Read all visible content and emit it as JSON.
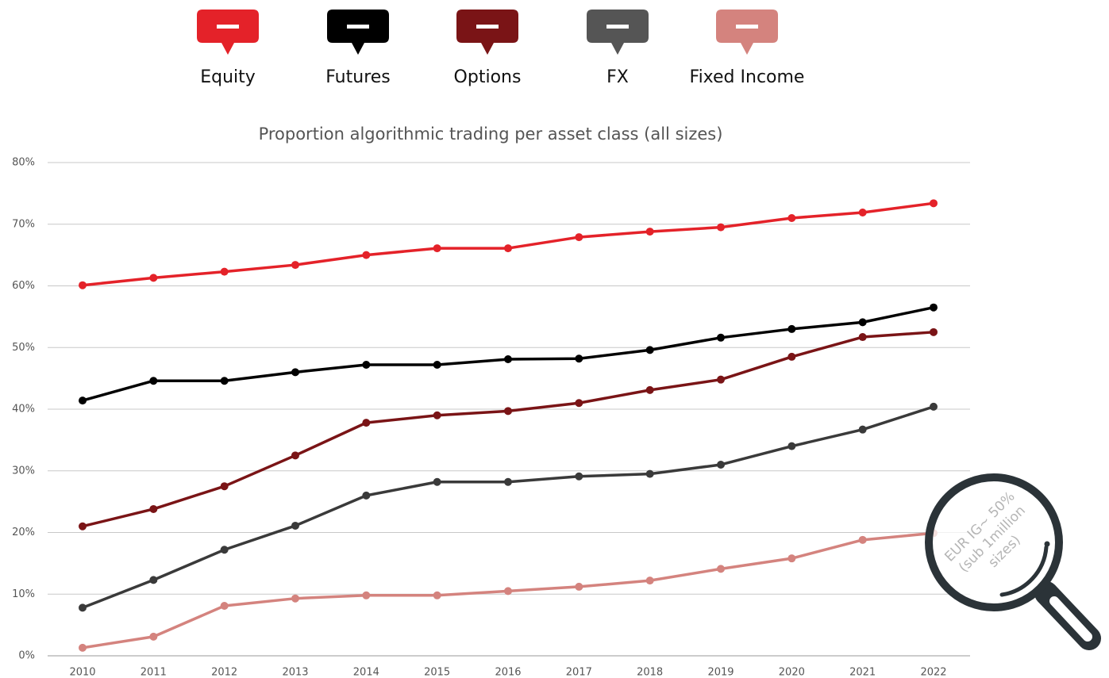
{
  "chart_data": {
    "type": "line",
    "title": "Proportion algorithmic trading per asset class (all sizes)",
    "categories": [
      "2010",
      "2011",
      "2012",
      "2013",
      "2014",
      "2015",
      "2016",
      "2017",
      "2018",
      "2019",
      "2020",
      "2021",
      "2022"
    ],
    "series": [
      {
        "name": "Equity",
        "color": "#e42229",
        "values": [
          60.1,
          61.3,
          62.3,
          63.4,
          65.0,
          66.1,
          66.1,
          67.9,
          68.8,
          69.5,
          71.0,
          71.9,
          73.4
        ]
      },
      {
        "name": "Futures",
        "color": "#000000",
        "values": [
          41.4,
          44.6,
          44.6,
          46.0,
          47.2,
          47.2,
          48.1,
          48.2,
          49.6,
          51.6,
          53.0,
          54.1,
          56.5
        ]
      },
      {
        "name": "Options",
        "color": "#7a1416",
        "values": [
          21.0,
          23.8,
          27.5,
          32.5,
          37.8,
          39.0,
          39.7,
          41.0,
          43.1,
          44.8,
          48.5,
          51.7,
          52.5
        ]
      },
      {
        "name": "FX",
        "color": "#3a3a3a",
        "values": [
          7.8,
          12.3,
          17.2,
          21.1,
          26.0,
          28.2,
          28.2,
          29.1,
          29.5,
          31.0,
          34.0,
          36.7,
          40.4
        ]
      },
      {
        "name": "Fixed Income",
        "color": "#d4837e",
        "values": [
          1.3,
          3.1,
          8.1,
          9.3,
          9.8,
          9.8,
          10.5,
          11.2,
          12.2,
          14.1,
          15.8,
          18.8,
          19.9
        ]
      }
    ],
    "ylim": [
      0,
      80
    ],
    "yticks": [
      {
        "value": 0,
        "label": "0%"
      },
      {
        "value": 10,
        "label": "10%"
      },
      {
        "value": 20,
        "label": "20%"
      },
      {
        "value": 30,
        "label": "30%"
      },
      {
        "value": 40,
        "label": "40%"
      },
      {
        "value": 50,
        "label": "50%"
      },
      {
        "value": 60,
        "label": "60%"
      },
      {
        "value": 70,
        "label": "70%"
      },
      {
        "value": 80,
        "label": "80%"
      }
    ],
    "grid": true,
    "legend": "top",
    "annotations": [
      "EUR IG~ 50%",
      "(sub 1million",
      "sizes)"
    ]
  }
}
